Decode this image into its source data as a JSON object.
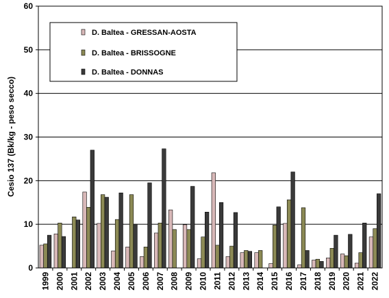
{
  "chart_data": {
    "type": "bar",
    "title": "",
    "xlabel": "",
    "ylabel": "Cesio 137 (Bk/kg - peso secco)",
    "ylim": [
      0,
      60
    ],
    "yticks": [
      0,
      10,
      20,
      30,
      40,
      50,
      60
    ],
    "grid": "horizontal",
    "legend_position": "top-left",
    "categories": [
      "1999",
      "2000",
      "2001",
      "2002",
      "2003",
      "2004",
      "2005",
      "2006",
      "2007",
      "2008",
      "2009",
      "2010",
      "2011",
      "2012",
      "2013",
      "2014",
      "2015",
      "2016",
      "2017",
      "2018",
      "2019",
      "2020",
      "2021",
      "2022"
    ],
    "series": [
      {
        "name": "D. Baltea - GRESSAN-AOSTA",
        "color": "#d8b8b8",
        "values": [
          5.2,
          7.8,
          0,
          17.4,
          10.2,
          3.9,
          4.8,
          2.6,
          8.0,
          13.3,
          9.9,
          2.1,
          21.8,
          2.6,
          3.5,
          3.5,
          1.0,
          10.2,
          0.7,
          1.8,
          2.3,
          3.2,
          1.1,
          7.1
        ]
      },
      {
        "name": "D. Baltea - BRISSOGNE",
        "color": "#8c8a55",
        "values": [
          5.5,
          10.3,
          11.7,
          13.9,
          16.8,
          11.1,
          16.8,
          4.8,
          10.3,
          8.8,
          8.8,
          7.1,
          5.2,
          5.0,
          4.0,
          4.0,
          9.8,
          15.6,
          13.8,
          2.0,
          4.5,
          2.8,
          3.5,
          9.0
        ]
      },
      {
        "name": "D. Baltea - DONNAS",
        "color": "#3a3a3a",
        "values": [
          7.5,
          7.2,
          11.0,
          27.0,
          16.2,
          17.2,
          10.0,
          19.5,
          27.3,
          0,
          18.7,
          12.8,
          15.0,
          12.7,
          3.8,
          0,
          14.0,
          22.0,
          4.0,
          1.5,
          7.5,
          7.7,
          10.3,
          17.0
        ]
      }
    ]
  }
}
